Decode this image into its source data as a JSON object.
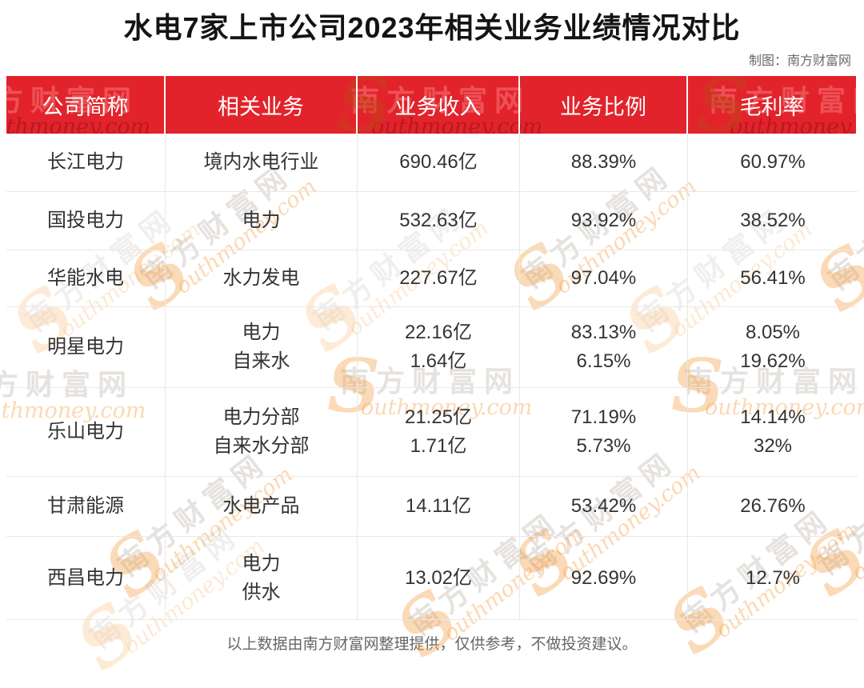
{
  "title": "水电7家上市公司2023年相关业务业绩情况对比",
  "credit": "制图：南方财富网",
  "table": {
    "headers": [
      "公司简称",
      "相关业务",
      "业务收入",
      "业务比例",
      "毛利率"
    ],
    "rows": [
      {
        "company": "长江电力",
        "business": [
          "境内水电行业"
        ],
        "revenue": [
          "690.46亿"
        ],
        "ratio": [
          "88.39%"
        ],
        "margin": [
          "60.97%"
        ]
      },
      {
        "company": "国投电力",
        "business": [
          "电力"
        ],
        "revenue": [
          "532.63亿"
        ],
        "ratio": [
          "93.92%"
        ],
        "margin": [
          "38.52%"
        ]
      },
      {
        "company": "华能水电",
        "business": [
          "水力发电"
        ],
        "revenue": [
          "227.67亿"
        ],
        "ratio": [
          "97.04%"
        ],
        "margin": [
          "56.41%"
        ]
      },
      {
        "company": "明星电力",
        "business": [
          "电力",
          "自来水"
        ],
        "revenue": [
          "22.16亿",
          "1.64亿"
        ],
        "ratio": [
          "83.13%",
          "6.15%"
        ],
        "margin": [
          "8.05%",
          "19.62%"
        ]
      },
      {
        "company": "乐山电力",
        "business": [
          "电力分部",
          "自来水分部"
        ],
        "revenue": [
          "21.25亿",
          "1.71亿"
        ],
        "ratio": [
          "71.19%",
          "5.73%"
        ],
        "margin": [
          "14.14%",
          "32%"
        ]
      },
      {
        "company": "甘肃能源",
        "business": [
          "水电产品"
        ],
        "revenue": [
          "14.11亿"
        ],
        "ratio": [
          "53.42%"
        ],
        "margin": [
          "26.76%"
        ]
      },
      {
        "company": "西昌电力",
        "business": [
          "电力",
          "供水"
        ],
        "revenue": [
          "13.02亿"
        ],
        "ratio": [
          "92.69%"
        ],
        "margin": [
          "12.7%"
        ]
      }
    ]
  },
  "footer": "以上数据由南方财富网整理提供，仅供参考，不做投资建议。",
  "watermark": {
    "cn": "南方财富网",
    "en": "outhmoney.com",
    "s": "S"
  },
  "colors": {
    "header_bg": "#E2232B",
    "header_text": "#FFFFFF",
    "body_text": "#333333",
    "grid_line": "#E8E8E8",
    "watermark_orange": "#F5A24A",
    "muted_text": "#6A6A6A"
  },
  "chart_data": {
    "type": "table",
    "title": "水电7家上市公司2023年相关业务业绩情况对比",
    "columns": [
      "公司简称",
      "相关业务",
      "业务收入",
      "业务比例",
      "毛利率"
    ],
    "rows": [
      [
        "长江电力",
        "境内水电行业",
        "690.46亿",
        "88.39%",
        "60.97%"
      ],
      [
        "国投电力",
        "电力",
        "532.63亿",
        "93.92%",
        "38.52%"
      ],
      [
        "华能水电",
        "水力发电",
        "227.67亿",
        "97.04%",
        "56.41%"
      ],
      [
        "明星电力",
        "电力 / 自来水",
        "22.16亿 / 1.64亿",
        "83.13% / 6.15%",
        "8.05% / 19.62%"
      ],
      [
        "乐山电力",
        "电力分部 / 自来水分部",
        "21.25亿 / 1.71亿",
        "71.19% / 5.73%",
        "14.14% / 32%"
      ],
      [
        "甘肃能源",
        "水电产品",
        "14.11亿",
        "53.42%",
        "26.76%"
      ],
      [
        "西昌电力",
        "电力 / 供水",
        "13.02亿",
        "92.69%",
        "12.7%"
      ]
    ]
  }
}
